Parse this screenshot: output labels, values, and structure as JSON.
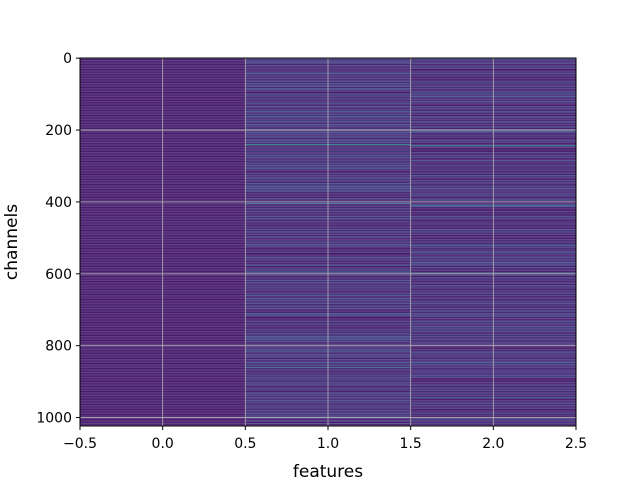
{
  "chart_data": {
    "type": "heatmap",
    "title": "",
    "xlabel": "features",
    "ylabel": "channels",
    "xlim": [
      -0.5,
      2.5
    ],
    "ylim": [
      1023.5,
      -0.5
    ],
    "n_channels": 1024,
    "n_features": 3,
    "x_ticks": [
      "−0.5",
      "0.0",
      "0.5",
      "1.0",
      "1.5",
      "2.0",
      "2.5"
    ],
    "x_tick_values": [
      -0.5,
      0.0,
      0.5,
      1.0,
      1.5,
      2.0,
      2.5
    ],
    "y_ticks": [
      "0",
      "200",
      "400",
      "600",
      "800",
      "1000"
    ],
    "y_tick_values": [
      0,
      200,
      400,
      600,
      800,
      1000
    ],
    "colormap": "viridis",
    "grid": true,
    "columns": [
      {
        "feature": 0,
        "base": 0.1,
        "variation": 0.015,
        "description_level": "uniform-low"
      },
      {
        "feature": 1,
        "base": 0.17,
        "variation": 0.1
      },
      {
        "feature": 2,
        "base": 0.16,
        "variation": 0.1
      }
    ],
    "bright_channels": [
      {
        "channel": 10,
        "feature": 1,
        "value": 0.4
      },
      {
        "channel": 95,
        "feature": 2,
        "value": 0.42
      },
      {
        "channel": 200,
        "feature": 1,
        "value": 0.45
      },
      {
        "channel": 205,
        "feature": 2,
        "value": 0.4
      },
      {
        "channel": 240,
        "feature": 1,
        "value": 0.62
      },
      {
        "channel": 242,
        "feature": 2,
        "value": 0.55
      },
      {
        "channel": 405,
        "feature": 1,
        "value": 0.48
      },
      {
        "channel": 410,
        "feature": 2,
        "value": 0.5
      },
      {
        "channel": 520,
        "feature": 2,
        "value": 0.42
      },
      {
        "channel": 595,
        "feature": 1,
        "value": 0.46
      },
      {
        "channel": 598,
        "feature": 2,
        "value": 0.44
      },
      {
        "channel": 715,
        "feature": 1,
        "value": 0.4
      },
      {
        "channel": 860,
        "feature": 1,
        "value": 0.38
      },
      {
        "channel": 945,
        "feature": 2,
        "value": 0.42
      },
      {
        "channel": 1000,
        "feature": 1,
        "value": 0.38
      }
    ]
  }
}
